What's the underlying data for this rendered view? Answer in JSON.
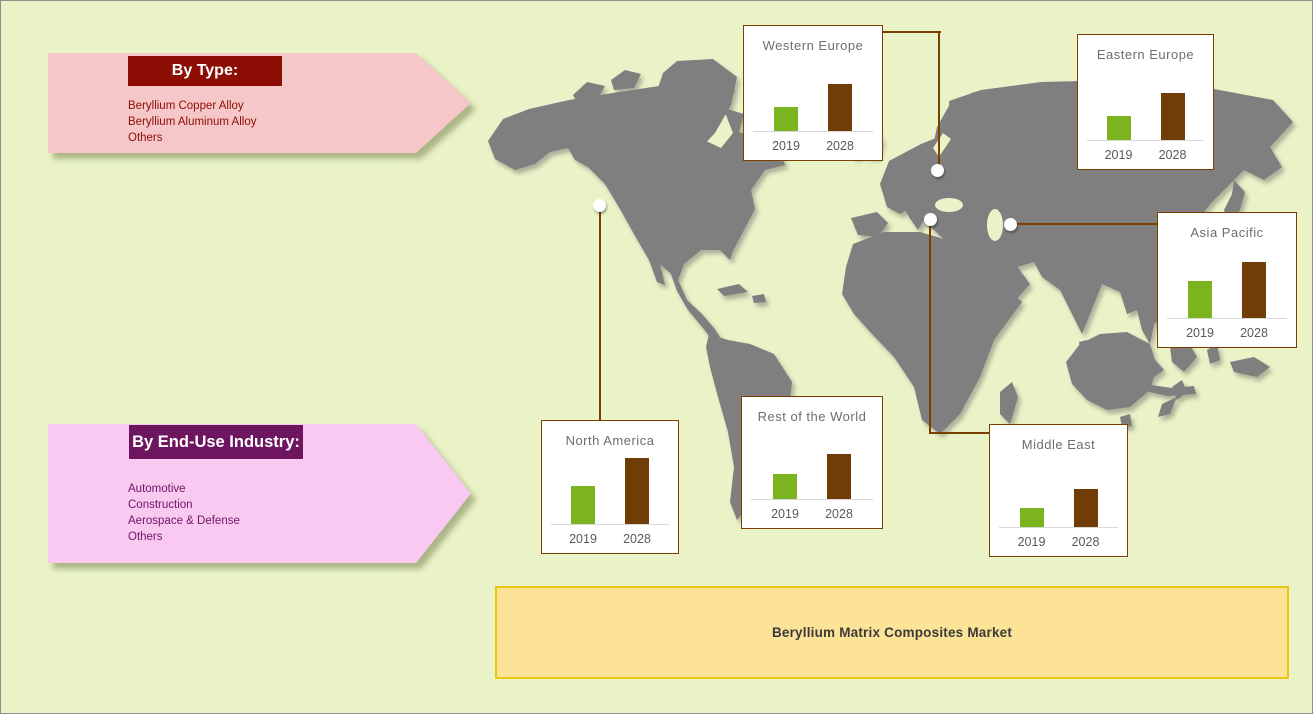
{
  "banner": {
    "label": "Beryllium Matrix Composites Market"
  },
  "panels": {
    "type": {
      "header": "By Type:",
      "items": [
        "Beryllium Copper Alloy",
        "Beryllium Aluminum Alloy",
        "Others"
      ]
    },
    "end_use": {
      "header": "By End-Use Industry:",
      "items": [
        "Automotive",
        "Construction",
        "Aerospace & Defense",
        "Others"
      ]
    }
  },
  "chart_data": [
    {
      "type": "bar",
      "title": "Western Europe",
      "categories": [
        "2019",
        "2028"
      ],
      "values": [
        25,
        48
      ],
      "ylim": [
        0,
        70
      ],
      "bar_colors": [
        "#7CB41F",
        "#713D07"
      ]
    },
    {
      "type": "bar",
      "title": "Eastern Europe",
      "categories": [
        "2019",
        "2028"
      ],
      "values": [
        25,
        48
      ],
      "ylim": [
        0,
        70
      ],
      "bar_colors": [
        "#7CB41F",
        "#713D07"
      ]
    },
    {
      "type": "bar",
      "title": "Asia Pacific",
      "categories": [
        "2019",
        "2028"
      ],
      "values": [
        38,
        57
      ],
      "ylim": [
        0,
        70
      ],
      "bar_colors": [
        "#7CB41F",
        "#713D07"
      ]
    },
    {
      "type": "bar",
      "title": "North America",
      "categories": [
        "2019",
        "2028"
      ],
      "values": [
        39,
        67
      ],
      "ylim": [
        0,
        70
      ],
      "bar_colors": [
        "#7CB41F",
        "#713D07"
      ]
    },
    {
      "type": "bar",
      "title": "Rest of the World",
      "categories": [
        "2019",
        "2028"
      ],
      "values": [
        26,
        46
      ],
      "ylim": [
        0,
        70
      ],
      "bar_colors": [
        "#7CB41F",
        "#713D07"
      ]
    },
    {
      "type": "bar",
      "title": "Middle East",
      "categories": [
        "2019",
        "2028"
      ],
      "values": [
        20,
        39
      ],
      "ylim": [
        0,
        70
      ],
      "bar_colors": [
        "#7CB41F",
        "#713D07"
      ]
    }
  ],
  "colors": {
    "background": "#E9F3C7",
    "map_land": "#7F7F7F",
    "chart_border": "#7B3F00",
    "connector": "#7B3F00",
    "bar_2019": "#7CB41F",
    "bar_2028": "#713D07",
    "type_header_bg": "#8C0D04",
    "type_panel_bg": "#F6C7C8",
    "type_text": "#8C0D04",
    "end_use_header_bg": "#6E1560",
    "end_use_panel_bg": "#F9C9F2",
    "end_use_text": "#6E1560",
    "banner_bg": "#FDE398",
    "banner_border": "#EDC511"
  }
}
